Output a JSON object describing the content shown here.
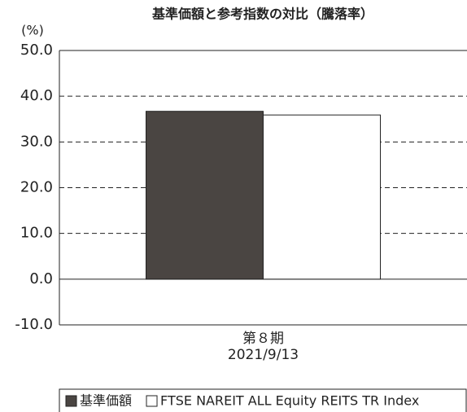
{
  "chart_data": {
    "type": "bar",
    "title": "基準価額と参考指数の対比（騰落率）",
    "y_unit": "(%)",
    "categories": [
      "第８期\n2021/9/13"
    ],
    "series": [
      {
        "name": "基準価額",
        "color": "#4a4542",
        "values": [
          36.7
        ]
      },
      {
        "name": "FTSE NAREIT ALL Equity REITS TR Index",
        "color": "#ffffff",
        "values": [
          35.9
        ]
      }
    ],
    "ylim": [
      -10,
      50
    ],
    "yticks": [
      {
        "value": -10,
        "label": "-10.0"
      },
      {
        "value": 0,
        "label": "0.0"
      },
      {
        "value": 10,
        "label": "10.0"
      },
      {
        "value": 20,
        "label": "20.0"
      },
      {
        "value": 30,
        "label": "30.0"
      },
      {
        "value": 40,
        "label": "40.0"
      },
      {
        "value": 50,
        "label": "50.0"
      }
    ],
    "grid": true,
    "legend": "bottom"
  }
}
